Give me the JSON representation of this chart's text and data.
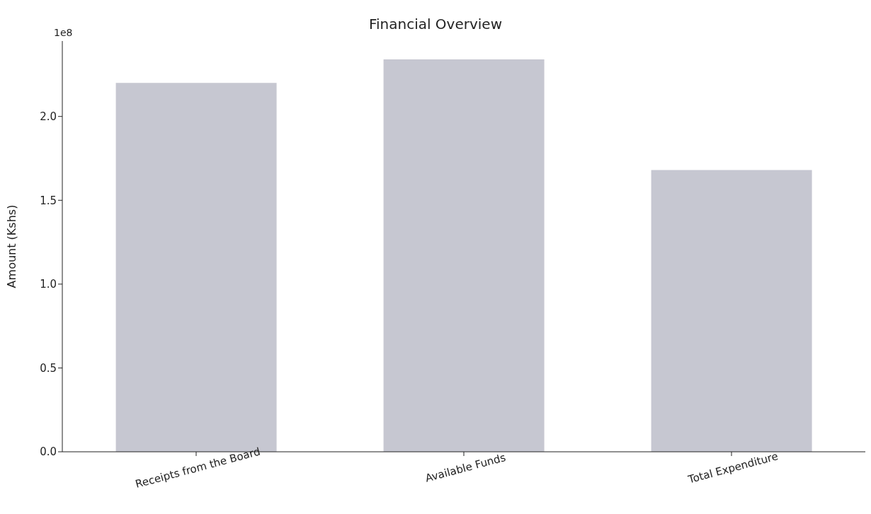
{
  "chart_data": {
    "type": "bar",
    "title": "Financial Overview",
    "ylabel": "Amount (Kshs)",
    "annotations": [
      "1e8"
    ],
    "categories": [
      "Receipts from the Board",
      "Available Funds",
      "Total Expenditure"
    ],
    "values": [
      2.2,
      2.34,
      1.68
    ],
    "color": "#c6c7d1",
    "ylim": [
      0,
      2.45
    ],
    "yticks": [
      {
        "value": 0,
        "label": "0.0"
      },
      {
        "value": 0.5,
        "label": "0.5"
      },
      {
        "value": 1,
        "label": "1.0"
      },
      {
        "value": 1.5,
        "label": "1.5"
      },
      {
        "value": 2,
        "label": "2.0"
      }
    ],
    "grid": false
  }
}
